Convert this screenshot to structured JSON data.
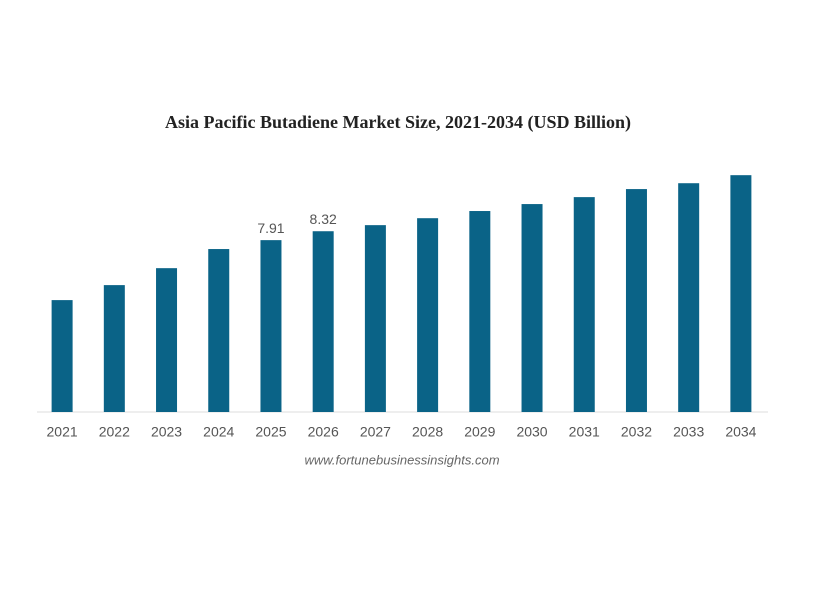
{
  "chart_data": {
    "type": "bar",
    "title": "Asia Pacific Butadiene Market Size, 2021-2034 (USD Billion)",
    "categories": [
      "2021",
      "2022",
      "2023",
      "2024",
      "2025",
      "2026",
      "2027",
      "2028",
      "2029",
      "2030",
      "2031",
      "2032",
      "2033",
      "2034"
    ],
    "values": [
      5.15,
      5.84,
      6.62,
      7.5,
      7.91,
      8.32,
      8.6,
      8.92,
      9.25,
      9.57,
      9.89,
      10.26,
      10.53,
      10.9
    ],
    "value_labels": [
      null,
      null,
      null,
      null,
      "7.91",
      "8.32",
      null,
      null,
      null,
      null,
      null,
      null,
      null,
      null
    ],
    "color": "#0a6387",
    "ylim": [
      0,
      11
    ],
    "source": "www.fortunebusinessinsights.com"
  }
}
